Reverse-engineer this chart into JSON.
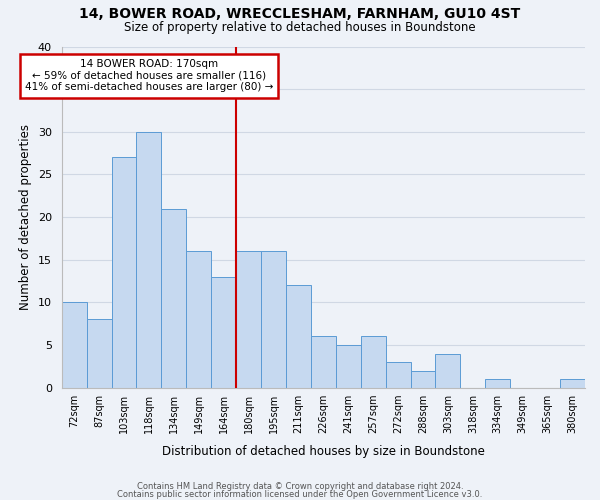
{
  "title": "14, BOWER ROAD, WRECCLESHAM, FARNHAM, GU10 4ST",
  "subtitle": "Size of property relative to detached houses in Boundstone",
  "xlabel": "Distribution of detached houses by size in Boundstone",
  "ylabel": "Number of detached properties",
  "bin_labels": [
    "72sqm",
    "87sqm",
    "103sqm",
    "118sqm",
    "134sqm",
    "149sqm",
    "164sqm",
    "180sqm",
    "195sqm",
    "211sqm",
    "226sqm",
    "241sqm",
    "257sqm",
    "272sqm",
    "288sqm",
    "303sqm",
    "318sqm",
    "334sqm",
    "349sqm",
    "365sqm",
    "380sqm"
  ],
  "bar_heights": [
    10,
    8,
    27,
    30,
    21,
    16,
    13,
    16,
    16,
    12,
    6,
    5,
    6,
    3,
    2,
    4,
    0,
    1,
    0,
    0,
    1
  ],
  "bar_color": "#c6d9f0",
  "bar_edge_color": "#5b9bd5",
  "grid_color": "#d0d8e4",
  "background_color": "#eef2f8",
  "vline_color": "#cc0000",
  "annotation_title": "14 BOWER ROAD: 170sqm",
  "annotation_line1": "← 59% of detached houses are smaller (116)",
  "annotation_line2": "41% of semi-detached houses are larger (80) →",
  "annotation_box_color": "#ffffff",
  "annotation_border_color": "#cc0000",
  "ylim": [
    0,
    40
  ],
  "yticks": [
    0,
    5,
    10,
    15,
    20,
    25,
    30,
    35,
    40
  ],
  "footnote1": "Contains HM Land Registry data © Crown copyright and database right 2024.",
  "footnote2": "Contains public sector information licensed under the Open Government Licence v3.0."
}
